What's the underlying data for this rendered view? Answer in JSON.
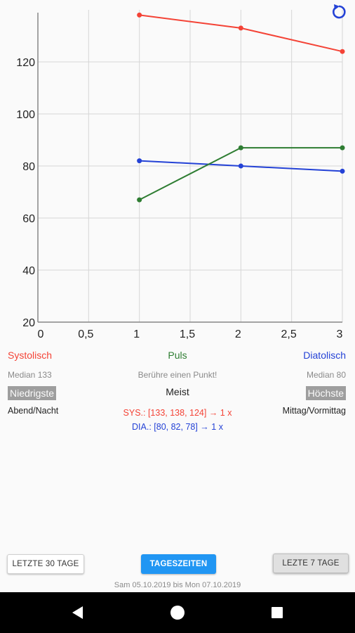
{
  "chart_data": {
    "type": "line",
    "x_ticks": [
      "0",
      "0,5",
      "1",
      "1,5",
      "2",
      "2,5",
      "3"
    ],
    "y_ticks": [
      "20",
      "40",
      "60",
      "80",
      "100",
      "120"
    ],
    "xlim": [
      0,
      3
    ],
    "ylim": [
      20,
      140
    ],
    "grid": true,
    "series": [
      {
        "name": "Systolisch",
        "color": "#f44336",
        "x": [
          1,
          2,
          3
        ],
        "y": [
          138,
          133,
          124
        ]
      },
      {
        "name": "Diatolisch",
        "color": "#2442d6",
        "x": [
          1,
          2,
          3
        ],
        "y": [
          82,
          80,
          78
        ]
      },
      {
        "name": "Puls",
        "color": "#2e7d32",
        "x": [
          1,
          2,
          3
        ],
        "y": [
          67,
          87,
          87
        ]
      }
    ]
  },
  "legend": {
    "systolisch": "Systolisch",
    "puls": "Puls",
    "diatolisch": "Diatolisch"
  },
  "stats": {
    "median_sys": "Median 133",
    "hint": "Berühre einen Punkt!",
    "median_dia": "Median 80",
    "lowest": "Niedrigste",
    "most": "Meist",
    "highest": "Höchste",
    "lowest_time": "Abend/Nacht",
    "most_sys": "SYS.: [133, 138, 124] → 1 x",
    "most_dia": "DIA.: [80, 82, 78] → 1 x",
    "highest_time": "Mittag/Vormittag"
  },
  "buttons": {
    "last30": "LETZTE 30 TAGE",
    "tageszeiten": "TAGESZEITEN",
    "last7": "LEZTE 7 TAGE"
  },
  "date_range": "Sam 05.10.2019  bis Mon 07.10.2019",
  "icons": {
    "refresh": "refresh-icon",
    "back": "back-icon",
    "home": "home-icon",
    "recents": "recents-icon"
  },
  "colors": {
    "accent": "#2196f3",
    "systolic": "#f44336",
    "pulse": "#2e7d32",
    "diastolic": "#2442d6"
  }
}
